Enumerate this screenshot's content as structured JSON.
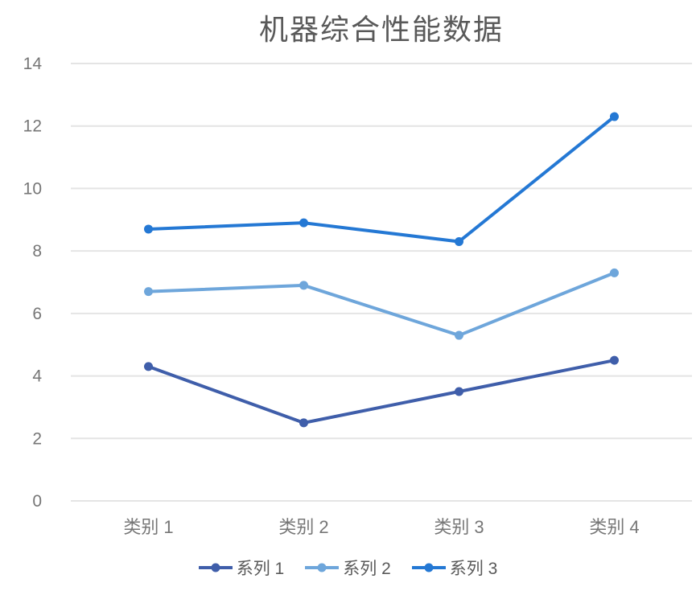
{
  "chart_data": {
    "type": "line",
    "title": "机器综合性能数据",
    "categories": [
      "类别 1",
      "类别 2",
      "类别 3",
      "类别 4"
    ],
    "series": [
      {
        "name": "系列 1",
        "color": "#3F5EAA",
        "values": [
          4.3,
          2.5,
          3.5,
          4.5
        ]
      },
      {
        "name": "系列 2",
        "color": "#6EA6DB",
        "values": [
          6.7,
          6.9,
          5.3,
          7.3
        ]
      },
      {
        "name": "系列 3",
        "color": "#2478D4",
        "values": [
          8.7,
          8.9,
          8.3,
          12.3
        ]
      }
    ],
    "xlabel": "",
    "ylabel": "",
    "ylim": [
      0,
      14
    ],
    "ytick_step": 2,
    "yticks": [
      0,
      2,
      4,
      6,
      8,
      10,
      12,
      14
    ],
    "grid": true,
    "legend_position": "bottom"
  },
  "style": {
    "title_color": "#595959",
    "axis_tick_color": "#767676",
    "gridline_color": "#E4E4E4",
    "legend_text_color": "#595959",
    "background": "#FFFFFF"
  }
}
